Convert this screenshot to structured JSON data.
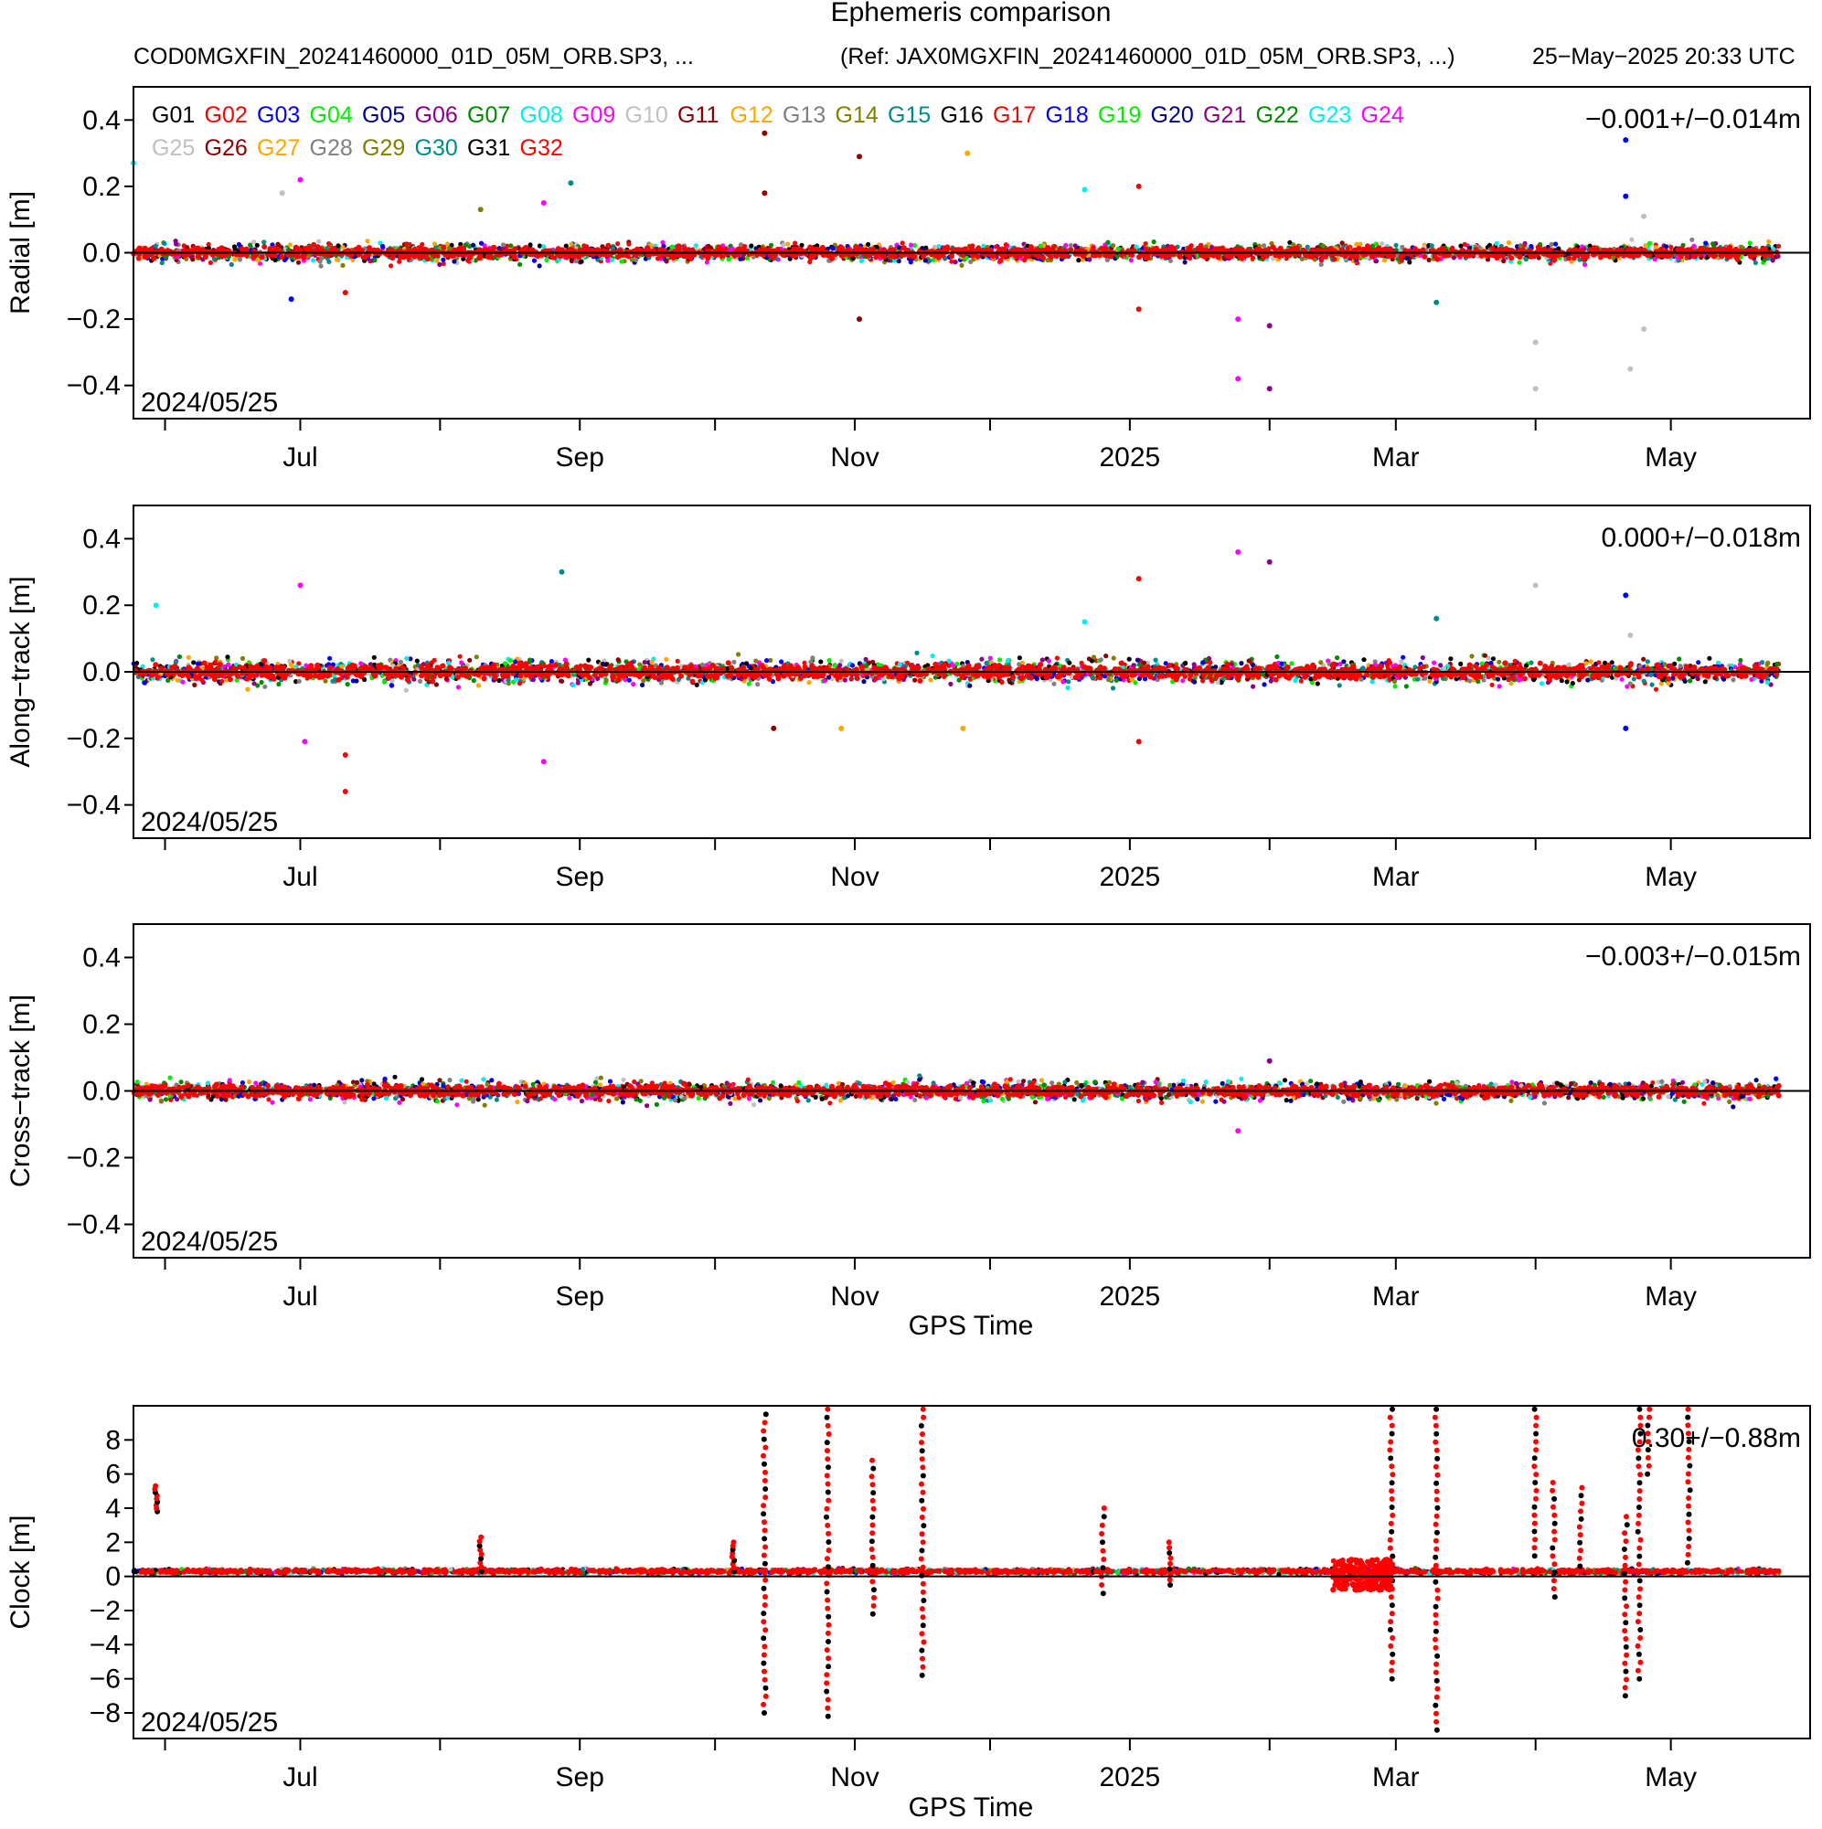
{
  "header": {
    "title": "Ephemeris comparison",
    "file": "COD0MGXFIN_20241460000_01D_05M_ORB.SP3, ...",
    "reference": "(Ref: JAX0MGXFIN_20241460000_01D_05M_ORB.SP3, ...)",
    "generated": "25−May−2025 20:33 UTC"
  },
  "colors": {
    "G01": "#000000",
    "G02": "#ff0000",
    "G03": "#0000ff",
    "G04": "#00ee00",
    "G05": "#00008b",
    "G06": "#8b008b",
    "G07": "#008b00",
    "G08": "#00eeee",
    "G09": "#ff00ff",
    "G10": "#c0c0c0",
    "G11": "#8b0000",
    "G12": "#ffa500",
    "G13": "#808080",
    "G14": "#808000",
    "G15": "#008b8b",
    "G16": "#000000",
    "G17": "#ff0000",
    "G18": "#0000ff",
    "G19": "#00ee00",
    "G20": "#00008b",
    "G21": "#8b008b",
    "G22": "#008b00",
    "G23": "#00eeee",
    "G24": "#ff00ff",
    "G25": "#c0c0c0",
    "G26": "#8b0000",
    "G27": "#ffa500",
    "G28": "#808080",
    "G29": "#808000",
    "G30": "#008b8b",
    "G31": "#000000",
    "G32": "#ff0000"
  },
  "chart_data": [
    {
      "type": "scatter",
      "ylabel": "Radial [m]",
      "xlabel": "",
      "ylim": [
        -0.5,
        0.5
      ],
      "yticks": [
        -0.4,
        -0.2,
        0.0,
        0.2,
        0.4
      ],
      "ytick_labels": [
        "−0.4",
        "−0.2",
        "0.0",
        "0.2",
        "0.4"
      ],
      "xlim": [
        "2024-05-25",
        "2025-05-25"
      ],
      "xticks": [
        {
          "date": "2024-07-01",
          "label": "Jul"
        },
        {
          "date": "2024-09-01",
          "label": "Sep"
        },
        {
          "date": "2024-11-01",
          "label": "Nov"
        },
        {
          "date": "2025-01-01",
          "label": "2025"
        },
        {
          "date": "2025-03-01",
          "label": "Mar"
        },
        {
          "date": "2025-05-01",
          "label": "May"
        }
      ],
      "minor_ticks": [
        "2024-06-01",
        "2024-08-01",
        "2024-10-01",
        "2024-12-01",
        "2025-02-01",
        "2025-04-01"
      ],
      "start_date_label": "2024/05/25",
      "stat_label": "−0.001+/−0.014m",
      "mean": -0.001,
      "std": 0.014,
      "legend": [
        "G01",
        "G02",
        "G03",
        "G04",
        "G05",
        "G06",
        "G07",
        "G08",
        "G09",
        "G10",
        "G11",
        "G12",
        "G13",
        "G14",
        "G15",
        "G16",
        "G17",
        "G18",
        "G19",
        "G20",
        "G21",
        "G22",
        "G23",
        "G24",
        "G25",
        "G26",
        "G27",
        "G28",
        "G29",
        "G30",
        "G31",
        "G32"
      ],
      "outliers": [
        {
          "sat": "G08",
          "x": "2024-05-25",
          "y": 0.27
        },
        {
          "sat": "G09",
          "x": "2024-07-01",
          "y": 0.22
        },
        {
          "sat": "G10",
          "x": "2024-06-27",
          "y": 0.18
        },
        {
          "sat": "G03",
          "x": "2024-06-29",
          "y": -0.14
        },
        {
          "sat": "G02",
          "x": "2024-07-11",
          "y": -0.12
        },
        {
          "sat": "G14",
          "x": "2024-08-10",
          "y": 0.13
        },
        {
          "sat": "G09",
          "x": "2024-08-24",
          "y": 0.15
        },
        {
          "sat": "G15",
          "x": "2024-08-30",
          "y": 0.21
        },
        {
          "sat": "G11",
          "x": "2024-10-12",
          "y": 0.36
        },
        {
          "sat": "G11",
          "x": "2024-10-12",
          "y": 0.18
        },
        {
          "sat": "G11",
          "x": "2024-11-02",
          "y": 0.29
        },
        {
          "sat": "G11",
          "x": "2024-11-02",
          "y": -0.2
        },
        {
          "sat": "G12",
          "x": "2024-11-26",
          "y": 0.3
        },
        {
          "sat": "G08",
          "x": "2024-12-22",
          "y": 0.19
        },
        {
          "sat": "G02",
          "x": "2025-01-03",
          "y": 0.2
        },
        {
          "sat": "G02",
          "x": "2025-01-03",
          "y": -0.17
        },
        {
          "sat": "G09",
          "x": "2025-01-25",
          "y": -0.38
        },
        {
          "sat": "G09",
          "x": "2025-01-25",
          "y": -0.2
        },
        {
          "sat": "G06",
          "x": "2025-02-01",
          "y": -0.41
        },
        {
          "sat": "G06",
          "x": "2025-02-01",
          "y": -0.22
        },
        {
          "sat": "G15",
          "x": "2025-03-10",
          "y": -0.15
        },
        {
          "sat": "G10",
          "x": "2025-04-01",
          "y": -0.41
        },
        {
          "sat": "G10",
          "x": "2025-04-01",
          "y": -0.27
        },
        {
          "sat": "G03",
          "x": "2025-04-21",
          "y": 0.34
        },
        {
          "sat": "G03",
          "x": "2025-04-21",
          "y": 0.17
        },
        {
          "sat": "G10",
          "x": "2025-04-22",
          "y": -0.35
        },
        {
          "sat": "G10",
          "x": "2025-04-25",
          "y": 0.11
        },
        {
          "sat": "G10",
          "x": "2025-04-25",
          "y": -0.23
        }
      ]
    },
    {
      "type": "scatter",
      "ylabel": "Along−track [m]",
      "xlabel": "",
      "ylim": [
        -0.5,
        0.5
      ],
      "yticks": [
        -0.4,
        -0.2,
        0.0,
        0.2,
        0.4
      ],
      "ytick_labels": [
        "−0.4",
        "−0.2",
        "0.0",
        "0.2",
        "0.4"
      ],
      "xlim": [
        "2024-05-25",
        "2025-05-25"
      ],
      "xticks": [
        {
          "date": "2024-07-01",
          "label": "Jul"
        },
        {
          "date": "2024-09-01",
          "label": "Sep"
        },
        {
          "date": "2024-11-01",
          "label": "Nov"
        },
        {
          "date": "2025-01-01",
          "label": "2025"
        },
        {
          "date": "2025-03-01",
          "label": "Mar"
        },
        {
          "date": "2025-05-01",
          "label": "May"
        }
      ],
      "minor_ticks": [
        "2024-06-01",
        "2024-08-01",
        "2024-10-01",
        "2024-12-01",
        "2025-02-01",
        "2025-04-01"
      ],
      "start_date_label": "2024/05/25",
      "stat_label": "0.000+/−0.018m",
      "mean": 0.0,
      "std": 0.018,
      "outliers": [
        {
          "sat": "G08",
          "x": "2024-05-30",
          "y": 0.2
        },
        {
          "sat": "G09",
          "x": "2024-07-01",
          "y": 0.26
        },
        {
          "sat": "G09",
          "x": "2024-07-02",
          "y": -0.21
        },
        {
          "sat": "G02",
          "x": "2024-07-11",
          "y": -0.36
        },
        {
          "sat": "G02",
          "x": "2024-07-11",
          "y": -0.25
        },
        {
          "sat": "G15",
          "x": "2024-08-28",
          "y": 0.3
        },
        {
          "sat": "G09",
          "x": "2024-08-24",
          "y": -0.27
        },
        {
          "sat": "G11",
          "x": "2024-10-14",
          "y": -0.17
        },
        {
          "sat": "G12",
          "x": "2024-10-29",
          "y": -0.17
        },
        {
          "sat": "G12",
          "x": "2024-11-25",
          "y": -0.17
        },
        {
          "sat": "G08",
          "x": "2024-12-22",
          "y": 0.15
        },
        {
          "sat": "G02",
          "x": "2025-01-03",
          "y": 0.28
        },
        {
          "sat": "G02",
          "x": "2025-01-03",
          "y": -0.21
        },
        {
          "sat": "G09",
          "x": "2025-01-25",
          "y": 0.36
        },
        {
          "sat": "G06",
          "x": "2025-02-01",
          "y": 0.33
        },
        {
          "sat": "G15",
          "x": "2025-03-10",
          "y": 0.16
        },
        {
          "sat": "G10",
          "x": "2025-04-01",
          "y": 0.26
        },
        {
          "sat": "G03",
          "x": "2025-04-21",
          "y": 0.23
        },
        {
          "sat": "G03",
          "x": "2025-04-21",
          "y": -0.17
        },
        {
          "sat": "G10",
          "x": "2025-04-22",
          "y": 0.11
        }
      ]
    },
    {
      "type": "scatter",
      "ylabel": "Cross−track [m]",
      "xlabel": "GPS Time",
      "ylim": [
        -0.5,
        0.5
      ],
      "yticks": [
        -0.4,
        -0.2,
        0.0,
        0.2,
        0.4
      ],
      "ytick_labels": [
        "−0.4",
        "−0.2",
        "0.0",
        "0.2",
        "0.4"
      ],
      "xlim": [
        "2024-05-25",
        "2025-05-25"
      ],
      "xticks": [
        {
          "date": "2024-07-01",
          "label": "Jul"
        },
        {
          "date": "2024-09-01",
          "label": "Sep"
        },
        {
          "date": "2024-11-01",
          "label": "Nov"
        },
        {
          "date": "2025-01-01",
          "label": "2025"
        },
        {
          "date": "2025-03-01",
          "label": "Mar"
        },
        {
          "date": "2025-05-01",
          "label": "May"
        }
      ],
      "minor_ticks": [
        "2024-06-01",
        "2024-08-01",
        "2024-10-01",
        "2024-12-01",
        "2025-02-01",
        "2025-04-01"
      ],
      "start_date_label": "2024/05/25",
      "stat_label": "−0.003+/−0.015m",
      "mean": -0.003,
      "std": 0.015,
      "outliers": [
        {
          "sat": "G09",
          "x": "2025-01-25",
          "y": -0.12
        },
        {
          "sat": "G06",
          "x": "2025-02-01",
          "y": 0.09
        }
      ]
    },
    {
      "type": "scatter",
      "ylabel": "Clock [m]",
      "xlabel": "GPS Time",
      "ylim": [
        -9.5,
        10
      ],
      "yticks": [
        -8,
        -6,
        -4,
        -2,
        0,
        2,
        4,
        6,
        8
      ],
      "ytick_labels": [
        "−8",
        "−6",
        "−4",
        "−2",
        "0",
        "2",
        "4",
        "6",
        "8"
      ],
      "xlim": [
        "2024-05-25",
        "2025-05-25"
      ],
      "xticks": [
        {
          "date": "2024-07-01",
          "label": "Jul"
        },
        {
          "date": "2024-09-01",
          "label": "Sep"
        },
        {
          "date": "2024-11-01",
          "label": "Nov"
        },
        {
          "date": "2025-01-01",
          "label": "2025"
        },
        {
          "date": "2025-03-01",
          "label": "Mar"
        },
        {
          "date": "2025-05-01",
          "label": "May"
        }
      ],
      "minor_ticks": [
        "2024-06-01",
        "2024-08-01",
        "2024-10-01",
        "2024-12-01",
        "2025-02-01",
        "2025-04-01"
      ],
      "start_date_label": "2024/05/25",
      "stat_label": "0.30+/−0.88m",
      "mean": 0.3,
      "std": 0.88,
      "bias": 0.3,
      "spikes": [
        {
          "x": "2024-05-30",
          "from": 3.8,
          "to": 5.3
        },
        {
          "x": "2024-08-10",
          "from": 0.3,
          "to": 2.3
        },
        {
          "x": "2024-10-05",
          "from": 0.3,
          "to": 2.0
        },
        {
          "x": "2024-10-12",
          "from": -8.0,
          "to": 9.5
        },
        {
          "x": "2024-10-26",
          "from": -8.2,
          "to": 9.8
        },
        {
          "x": "2024-11-05",
          "from": -2.2,
          "to": 6.8
        },
        {
          "x": "2024-11-16",
          "from": -5.8,
          "to": 9.8
        },
        {
          "x": "2024-12-26",
          "from": -1.0,
          "to": 4.0
        },
        {
          "x": "2025-01-10",
          "from": -0.5,
          "to": 2.0
        },
        {
          "x": "2025-02-28",
          "from": -6.0,
          "to": 9.8
        },
        {
          "x": "2025-03-10",
          "from": -9.0,
          "to": 9.8
        },
        {
          "x": "2025-04-01",
          "from": 1.2,
          "to": 9.8
        },
        {
          "x": "2025-04-05",
          "from": -1.2,
          "to": 5.5
        },
        {
          "x": "2025-04-11",
          "from": 0.6,
          "to": 5.2
        },
        {
          "x": "2025-04-21",
          "from": -7.0,
          "to": 3.5
        },
        {
          "x": "2025-04-24",
          "from": -6.0,
          "to": 9.8
        },
        {
          "x": "2025-04-26",
          "from": 6.0,
          "to": 9.8
        },
        {
          "x": "2025-05-05",
          "from": 0.8,
          "to": 9.8
        }
      ],
      "noisy_period": {
        "from": "2025-02-15",
        "to": "2025-02-28",
        "from_y": -0.8,
        "to_y": 1.0
      }
    }
  ]
}
